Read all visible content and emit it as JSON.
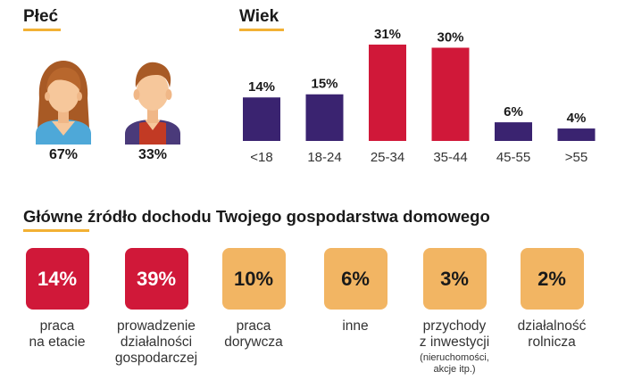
{
  "colors": {
    "purple": "#3a2370",
    "red": "#d01839",
    "orange": "#f2b563",
    "underline": "#f2b134"
  },
  "gender": {
    "title": "Płeć",
    "female_pct": "67%",
    "male_pct": "33%"
  },
  "age": {
    "title": "Wiek"
  },
  "income": {
    "title_highlight": "Główne",
    "title_rest": " źródło dochodu Twojego gospodarstwa domowego",
    "items": [
      {
        "value": "14%",
        "label1": "praca",
        "label2": "na etacie",
        "label3": "",
        "sub1": "",
        "sub2": "",
        "color": "red"
      },
      {
        "value": "39%",
        "label1": "prowadzenie",
        "label2": "działalności",
        "label3": "gospodarczej",
        "sub1": "",
        "sub2": "",
        "color": "red"
      },
      {
        "value": "10%",
        "label1": "praca",
        "label2": "dorywcza",
        "label3": "",
        "sub1": "",
        "sub2": "",
        "color": "orange"
      },
      {
        "value": "6%",
        "label1": "inne",
        "label2": "",
        "label3": "",
        "sub1": "",
        "sub2": "",
        "color": "orange"
      },
      {
        "value": "3%",
        "label1": "przychody",
        "label2": "z inwestycji",
        "label3": "",
        "sub1": "(nieruchomości,",
        "sub2": "akcje itp.)",
        "color": "orange"
      },
      {
        "value": "2%",
        "label1": "działalność",
        "label2": "rolnicza",
        "label3": "",
        "sub1": "",
        "sub2": "",
        "color": "orange"
      }
    ]
  },
  "chart_data": [
    {
      "type": "pie",
      "title": "Płeć",
      "categories": [
        "",
        ""
      ],
      "values": [
        67,
        33
      ]
    },
    {
      "type": "bar",
      "title": "Wiek",
      "categories": [
        "<18",
        "18-24",
        "25-34",
        "35-44",
        "45-55",
        ">55"
      ],
      "values": [
        14,
        15,
        31,
        30,
        6,
        4
      ],
      "value_labels": [
        "14%",
        "15%",
        "31%",
        "30%",
        "6%",
        "4%"
      ],
      "bar_colors": [
        "purple",
        "purple",
        "red",
        "red",
        "purple",
        "purple"
      ],
      "ylim": [
        0,
        31
      ],
      "grid": false,
      "xlabel": "",
      "ylabel": ""
    },
    {
      "type": "table",
      "title": "Główne źródło dochodu Twojego gospodarstwa domowego",
      "categories": [
        "praca na etacie",
        "prowadzenie działalności gospodarczej",
        "praca dorywcza",
        "inne",
        "przychody z inwestycji (nieruchomości, akcje itp.)",
        "działalność rolnicza"
      ],
      "values": [
        14,
        39,
        10,
        6,
        3,
        2
      ]
    }
  ]
}
